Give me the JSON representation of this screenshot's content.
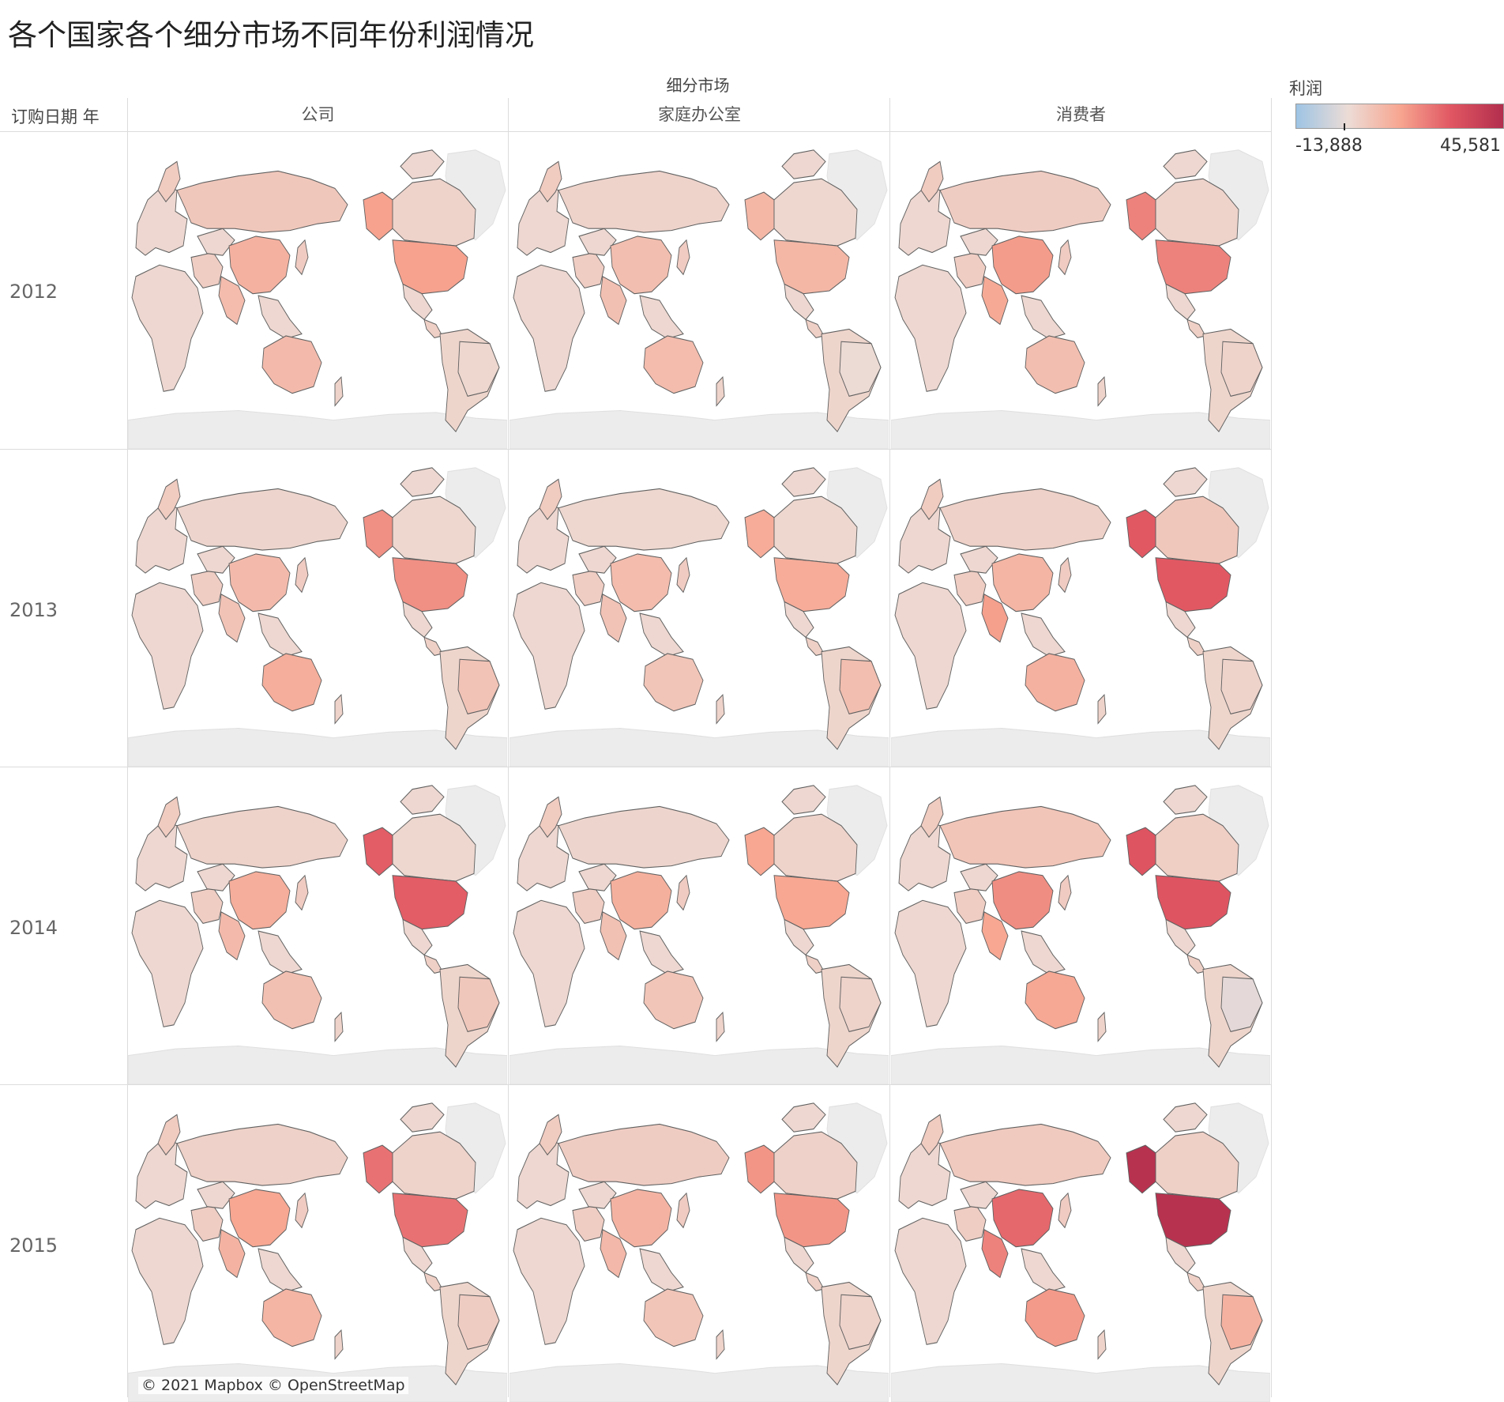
{
  "title": "各个国家各个细分市场不同年份利润情况",
  "columns_field_label": "细分市场",
  "rows_field_label": "订购日期 年",
  "columns": [
    "公司",
    "家庭办公室",
    "消费者"
  ],
  "rows": [
    "2012",
    "2013",
    "2014",
    "2015"
  ],
  "legend": {
    "title": "利润",
    "min_label": "-13,888",
    "max_label": "45,581",
    "min": -13888,
    "max": 45581,
    "colors": [
      "#9ec4e4",
      "#ecdcd6",
      "#f7a691",
      "#e05662",
      "#b22e4d"
    ]
  },
  "attribution": "© 2021 Mapbox © OpenStreetMap",
  "map_colors": {
    "land_nodata": "#e3e3e3",
    "ocean": "#ffffff",
    "border": "#606060"
  },
  "chart_data": {
    "type": "choropleth",
    "measure": "利润",
    "facet_columns": "细分市场",
    "facet_rows": "订购日期 年",
    "note_regions": [
      "Alaska/USA",
      "Russia",
      "China",
      "Australia",
      "Brazil",
      "India",
      "Canada"
    ],
    "cells": [
      {
        "year": "2012",
        "segment": "公司",
        "values": {
          "USA": 16000,
          "Russia": 6000,
          "China": 12000,
          "Australia": 9500,
          "Canada": 2500,
          "Brazil": 1500,
          "India": 9000
        }
      },
      {
        "year": "2012",
        "segment": "家庭办公室",
        "values": {
          "USA": 10500,
          "Russia": 2500,
          "China": 8500,
          "Australia": 9000,
          "Canada": 1500,
          "Brazil": 500,
          "India": 8000
        }
      },
      {
        "year": "2012",
        "segment": "消费者",
        "values": {
          "USA": 22000,
          "Russia": 4500,
          "China": 17000,
          "Australia": 8500,
          "Canada": 2500,
          "Brazil": 2500,
          "India": 14000
        }
      },
      {
        "year": "2013",
        "segment": "公司",
        "values": {
          "USA": 19500,
          "Russia": 2000,
          "China": 9500,
          "Australia": 13000,
          "Canada": 1500,
          "Brazil": 7000,
          "India": 7000
        }
      },
      {
        "year": "2013",
        "segment": "家庭办公室",
        "values": {
          "USA": 13500,
          "Russia": 1500,
          "China": 9000,
          "Australia": 6500,
          "Canada": 1500,
          "Brazil": 8500,
          "India": 7000
        }
      },
      {
        "year": "2013",
        "segment": "消费者",
        "values": {
          "USA": 30000,
          "Russia": 3000,
          "China": 11000,
          "Australia": 12000,
          "Canada": 6000,
          "Brazil": 2500,
          "India": 16500
        }
      },
      {
        "year": "2014",
        "segment": "公司",
        "values": {
          "USA": 29000,
          "Russia": 2500,
          "China": 13000,
          "Australia": 8000,
          "Canada": 1500,
          "Brazil": 6000,
          "India": 9500
        }
      },
      {
        "year": "2014",
        "segment": "家庭办公室",
        "values": {
          "USA": 15000,
          "Russia": 2000,
          "China": 12500,
          "Australia": 6500,
          "Canada": 2500,
          "Brazil": 2500,
          "India": 7500
        }
      },
      {
        "year": "2014",
        "segment": "消费者",
        "values": {
          "USA": 31000,
          "Russia": 6500,
          "China": 20000,
          "Australia": 14500,
          "Canada": 4000,
          "Brazil": -1500,
          "India": 15000
        }
      },
      {
        "year": "2015",
        "segment": "公司",
        "values": {
          "USA": 25000,
          "Russia": 3000,
          "China": 15000,
          "Australia": 11000,
          "Canada": 2500,
          "Brazil": 4500,
          "India": 11500
        }
      },
      {
        "year": "2015",
        "segment": "家庭办公室",
        "values": {
          "USA": 18500,
          "Russia": 4500,
          "China": 11500,
          "Australia": 6500,
          "Canada": 3000,
          "Brazil": 2500,
          "India": 10000
        }
      },
      {
        "year": "2015",
        "segment": "消费者",
        "values": {
          "USA": 44000,
          "Russia": 5000,
          "China": 27000,
          "Australia": 17500,
          "Canada": 3500,
          "Brazil": 12000,
          "India": 22000
        }
      }
    ]
  }
}
